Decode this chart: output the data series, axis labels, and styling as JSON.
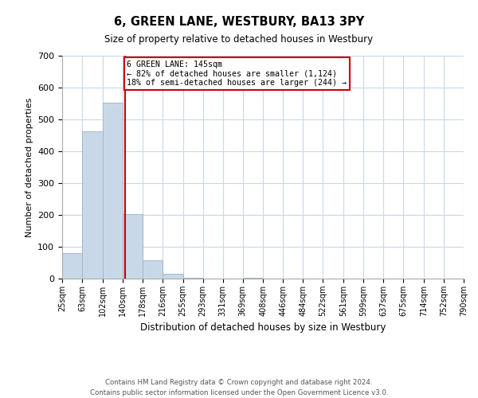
{
  "title": "6, GREEN LANE, WESTBURY, BA13 3PY",
  "subtitle": "Size of property relative to detached houses in Westbury",
  "xlabel": "Distribution of detached houses by size in Westbury",
  "ylabel": "Number of detached properties",
  "bin_edges": [
    25,
    63,
    102,
    140,
    178,
    216,
    255,
    293,
    331,
    369,
    408,
    446,
    484,
    522,
    561,
    599,
    637,
    675,
    714,
    752,
    790
  ],
  "bar_heights": [
    79,
    463,
    553,
    202,
    58,
    14,
    2,
    0,
    0,
    3,
    0,
    0,
    0,
    0,
    0,
    0,
    0,
    0,
    0,
    0
  ],
  "bar_color": "#c8d8e8",
  "bar_edgecolor": "#a0b8cc",
  "property_line_x": 145,
  "property_line_color": "#cc0000",
  "annotation_line1": "6 GREEN LANE: 145sqm",
  "annotation_line2": "← 82% of detached houses are smaller (1,124)",
  "annotation_line3": "18% of semi-detached houses are larger (244) →",
  "annotation_box_color": "#cc0000",
  "ylim": [
    0,
    700
  ],
  "yticks": [
    0,
    100,
    200,
    300,
    400,
    500,
    600,
    700
  ],
  "tick_labels": [
    "25sqm",
    "63sqm",
    "102sqm",
    "140sqm",
    "178sqm",
    "216sqm",
    "255sqm",
    "293sqm",
    "331sqm",
    "369sqm",
    "408sqm",
    "446sqm",
    "484sqm",
    "522sqm",
    "561sqm",
    "599sqm",
    "637sqm",
    "675sqm",
    "714sqm",
    "752sqm",
    "790sqm"
  ],
  "footer_text": "Contains HM Land Registry data © Crown copyright and database right 2024.\nContains public sector information licensed under the Open Government Licence v3.0.",
  "background_color": "#ffffff",
  "grid_color": "#c8d8e8",
  "fig_width": 6.0,
  "fig_height": 5.0,
  "dpi": 100
}
